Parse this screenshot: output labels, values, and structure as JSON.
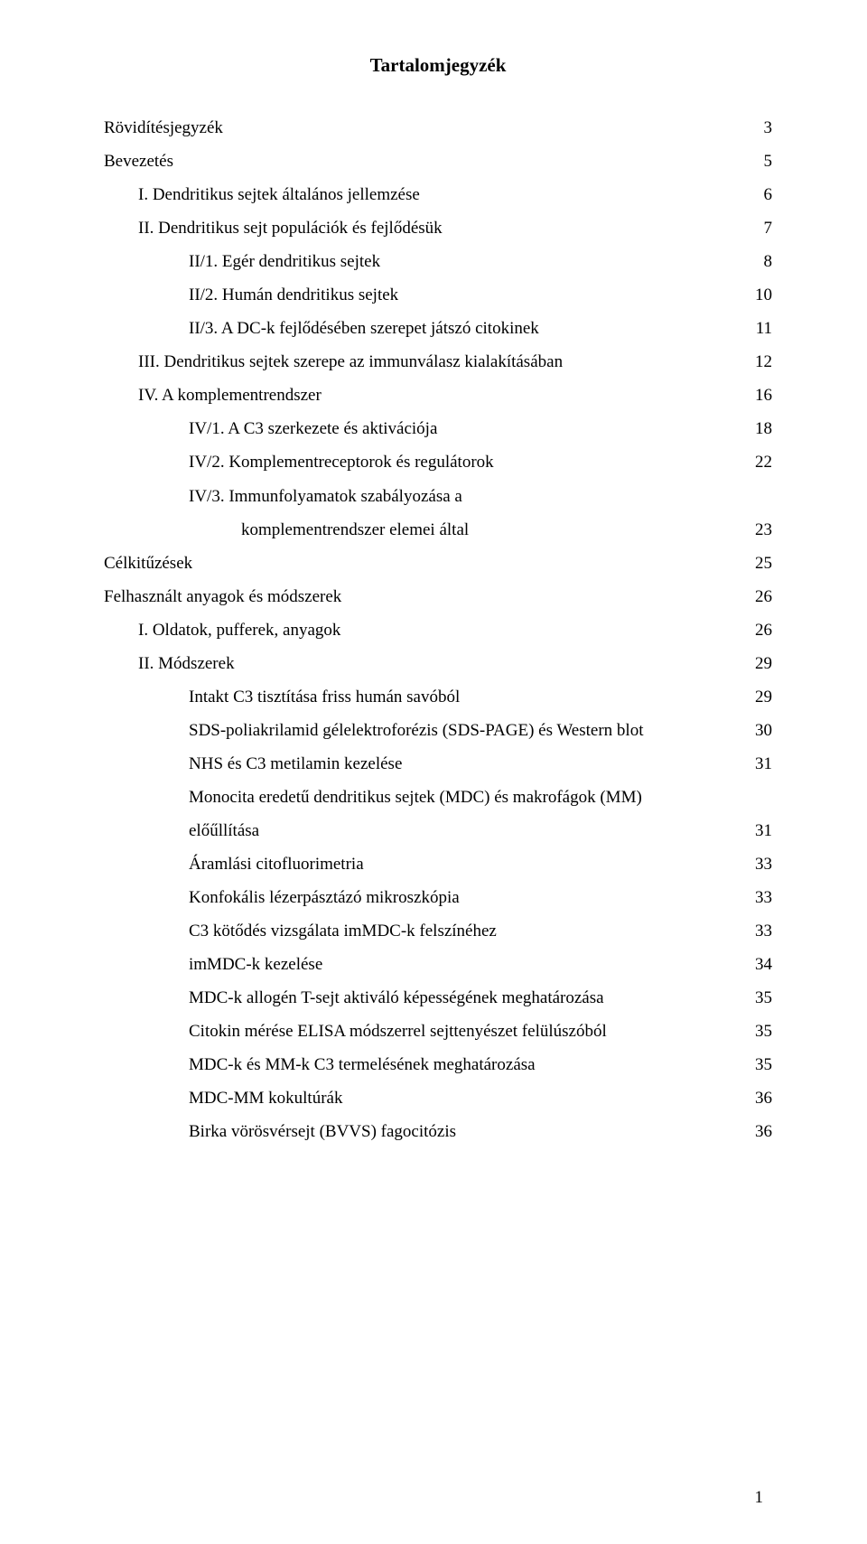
{
  "title": "Tartalomjegyzék",
  "pageNumber": "1",
  "entries": [
    {
      "label": "Rövidítésjegyzék",
      "page": "3",
      "indent": 0
    },
    {
      "label": "Bevezetés",
      "page": "5",
      "indent": 0
    },
    {
      "label": "I. Dendritikus sejtek általános jellemzése",
      "page": "6",
      "indent": 1
    },
    {
      "label": "II. Dendritikus sejt populációk és fejlődésük",
      "page": "7",
      "indent": 1
    },
    {
      "label": "II/1. Egér dendritikus sejtek",
      "page": "8",
      "indent": 2
    },
    {
      "label": "II/2. Humán dendritikus sejtek",
      "page": "10",
      "indent": 2
    },
    {
      "label": "II/3. A DC-k fejlődésében szerepet játszó citokinek",
      "page": "11",
      "indent": 2
    },
    {
      "label": "III. Dendritikus sejtek szerepe az immunválasz kialakításában",
      "page": "12",
      "indent": 1
    },
    {
      "label": "IV. A komplementrendszer",
      "page": "16",
      "indent": 1
    },
    {
      "label": "IV/1. A C3 szerkezete és aktivációja",
      "page": "18",
      "indent": 2
    },
    {
      "label": "IV/2. Komplementreceptorok és regulátorok",
      "page": "22",
      "indent": 2
    },
    {
      "label": "IV/3. Immunfolyamatok szabályozása a",
      "page": "",
      "indent": 2
    },
    {
      "label": "komplementrendszer elemei által",
      "page": "23",
      "indent": 3
    },
    {
      "label": "Célkitűzések",
      "page": "25",
      "indent": 0
    },
    {
      "label": "Felhasznált anyagok és módszerek",
      "page": "26",
      "indent": 0
    },
    {
      "label": "I. Oldatok, pufferek, anyagok",
      "page": "26",
      "indent": 1
    },
    {
      "label": "II. Módszerek",
      "page": "29",
      "indent": 1
    },
    {
      "label": "Intakt C3 tisztítása friss humán savóból",
      "page": "29",
      "indent": 2
    },
    {
      "label": "SDS-poliakrilamid gélelektroforézis (SDS-PAGE) és Western blot",
      "page": "30",
      "indent": 2
    },
    {
      "label": "NHS és C3 metilamin kezelése",
      "page": "31",
      "indent": 2
    },
    {
      "label": "Monocita eredetű dendritikus sejtek (MDC) és makrofágok (MM)",
      "page": "",
      "indent": 2
    },
    {
      "label": "előűllítása",
      "page": "31",
      "indent": 2
    },
    {
      "label": "Áramlási citofluorimetria",
      "page": "33",
      "indent": 2
    },
    {
      "label": "Konfokális lézerpásztázó mikroszkópia",
      "page": "33",
      "indent": 2
    },
    {
      "label": "C3 kötődés vizsgálata imMDC-k felszínéhez",
      "page": "33",
      "indent": 2
    },
    {
      "label": "imMDC-k kezelése",
      "page": "34",
      "indent": 2
    },
    {
      "label": "MDC-k allogén T-sejt aktiváló képességének meghatározása",
      "page": "35",
      "indent": 2
    },
    {
      "label": "Citokin mérése ELISA módszerrel sejttenyészet felülúszóból",
      "page": "35",
      "indent": 2
    },
    {
      "label": "MDC-k és MM-k C3 termelésének meghatározása",
      "page": "35",
      "indent": 2
    },
    {
      "label": "MDC-MM kokultúrák",
      "page": "36",
      "indent": 2
    },
    {
      "label": "Birka vörösvérsejt (BVVS) fagocitózis",
      "page": "36",
      "indent": 2
    }
  ]
}
